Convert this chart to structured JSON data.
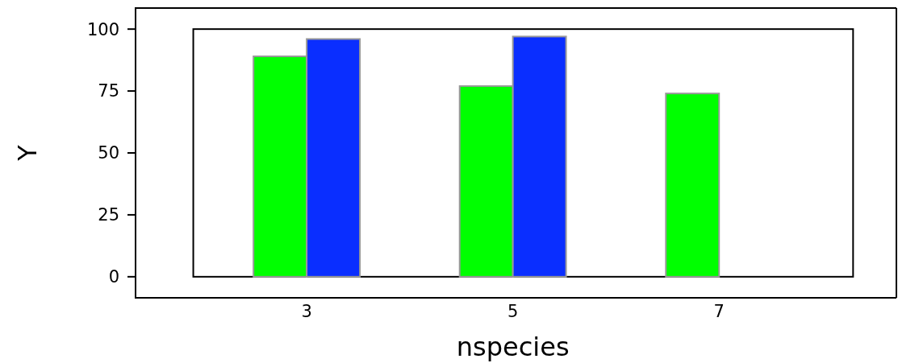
{
  "chart_data": {
    "type": "bar",
    "xlabel": "nspecies",
    "ylabel": "Y",
    "categories": [
      "3",
      "5",
      "7"
    ],
    "series": [
      {
        "color": "#00ff00",
        "values": [
          89,
          77,
          74
        ]
      },
      {
        "color": "#0a2eff",
        "values": [
          96,
          97,
          null
        ]
      }
    ],
    "ylim": [
      -8.5,
      108.5
    ],
    "yticks": [
      0,
      25,
      50,
      75,
      100
    ],
    "grid": false
  }
}
